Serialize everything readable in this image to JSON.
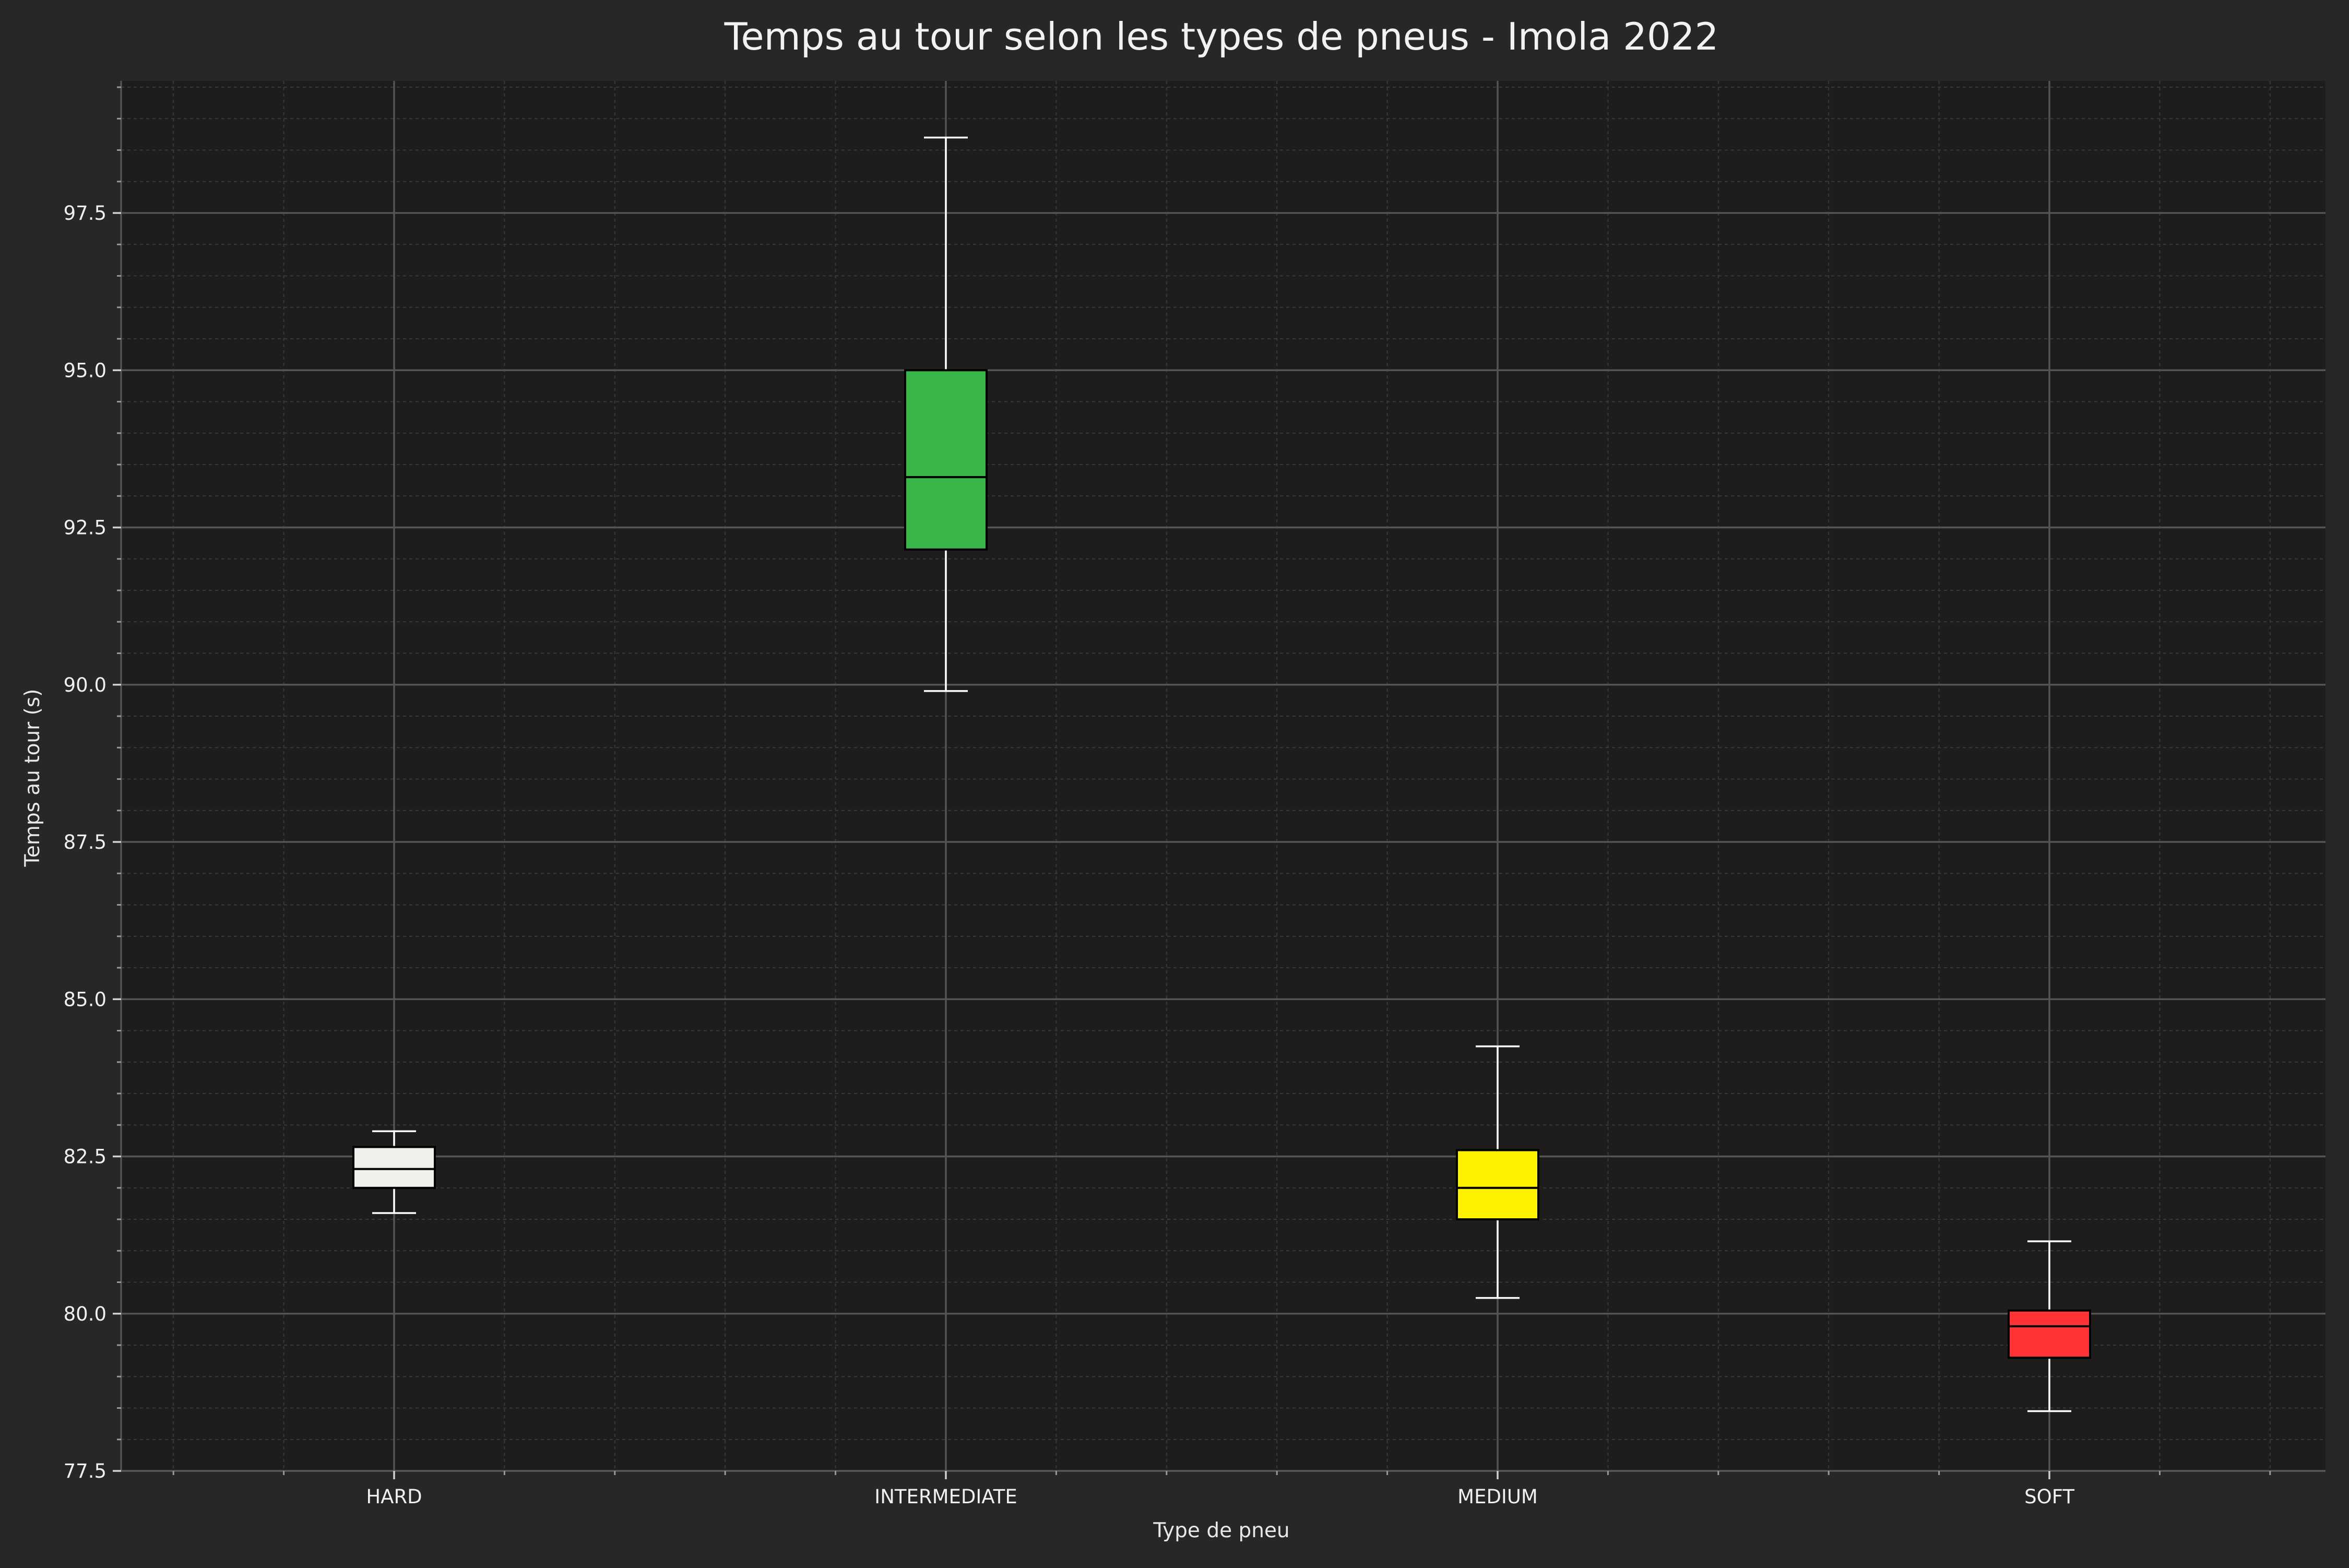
{
  "chart_data": {
    "type": "box",
    "title": "Temps au tour selon les types de pneus - Imola 2022",
    "xlabel": "Type de pneu",
    "ylabel": "Temps au tour (s)",
    "ylim": [
      77.5,
      99.6
    ],
    "yticks": [
      77.5,
      80.0,
      82.5,
      85.0,
      87.5,
      90.0,
      92.5,
      95.0,
      97.5
    ],
    "ytick_labels": [
      "77.5",
      "80.0",
      "82.5",
      "85.0",
      "87.5",
      "90.0",
      "92.5",
      "95.0",
      "97.5"
    ],
    "grid": true,
    "background_color": "#292726",
    "plot_background_color": "#1e1d1c",
    "categories": [
      "HARD",
      "INTERMEDIATE",
      "MEDIUM",
      "SOFT"
    ],
    "boxes": [
      {
        "category": "HARD",
        "whisker_low": 81.6,
        "q1": 82.0,
        "median": 82.3,
        "q3": 82.65,
        "whisker_high": 82.9,
        "color": "#f0f0ec",
        "median_color": "#000000"
      },
      {
        "category": "INTERMEDIATE",
        "whisker_low": 89.9,
        "q1": 92.15,
        "median": 93.3,
        "q3": 95.0,
        "whisker_high": 98.7,
        "color": "#39b54a",
        "median_color": "#000000"
      },
      {
        "category": "MEDIUM",
        "whisker_low": 80.25,
        "q1": 81.5,
        "median": 82.0,
        "q3": 82.6,
        "whisker_high": 84.25,
        "color": "#fff200",
        "median_color": "#000000"
      },
      {
        "category": "SOFT",
        "whisker_low": 78.45,
        "q1": 79.3,
        "median": 79.8,
        "q3": 80.05,
        "whisker_high": 81.15,
        "color": "#ff3333",
        "median_color": "#000000"
      }
    ]
  }
}
